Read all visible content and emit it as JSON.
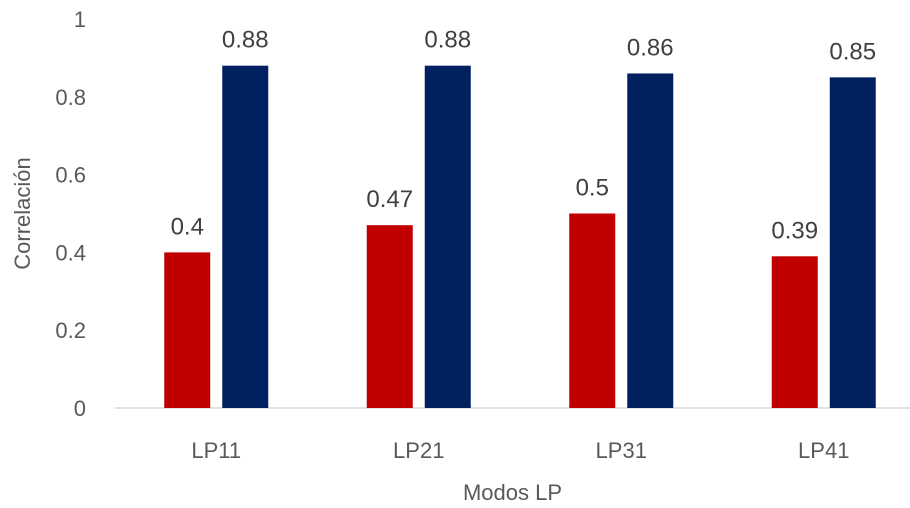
{
  "chart_data": {
    "type": "bar",
    "title": "",
    "xlabel": "Modos LP",
    "ylabel": "Correlación",
    "categories": [
      "LP11",
      "LP21",
      "LP31",
      "LP41"
    ],
    "series": [
      {
        "values": [
          0.4,
          0.47,
          0.5,
          0.39
        ],
        "color": "#C00000"
      },
      {
        "values": [
          0.88,
          0.88,
          0.86,
          0.85
        ],
        "color": "#002060"
      }
    ],
    "ylim": [
      0,
      1
    ],
    "yticks": [
      "0",
      "0.2",
      "0.4",
      "0.6",
      "0.8",
      "1"
    ],
    "grid": false,
    "legend": "none",
    "data_labels": true
  }
}
